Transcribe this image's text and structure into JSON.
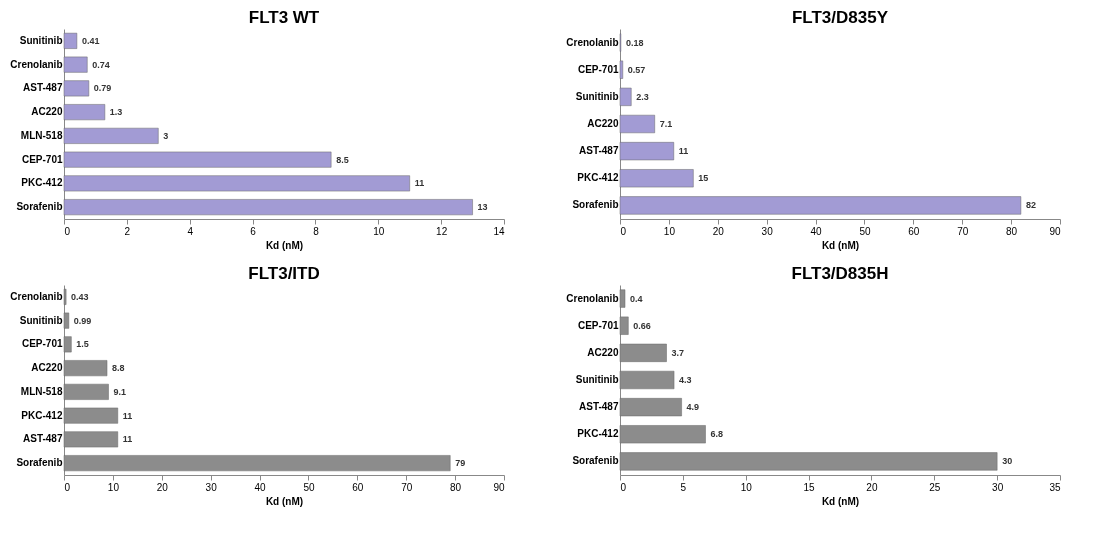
{
  "chart_data": [
    {
      "type": "bar",
      "orientation": "horizontal",
      "title": "FLT3 WT",
      "xlabel": "Kd (nM)",
      "categories": [
        "Sunitinib",
        "Crenolanib",
        "AST-487",
        "AC220",
        "MLN-518",
        "CEP-701",
        "PKC-412",
        "Sorafenib"
      ],
      "values": [
        0.41,
        0.74,
        0.79,
        1.3,
        3,
        8.5,
        11,
        13
      ],
      "color": "#a29bd4",
      "xlim": [
        0,
        14
      ],
      "xticks": [
        0,
        2,
        4,
        6,
        8,
        10,
        12,
        14
      ],
      "data_labels": true,
      "grid": false
    },
    {
      "type": "bar",
      "orientation": "horizontal",
      "title": "FLT3/D835Y",
      "xlabel": "Kd (nM)",
      "categories": [
        "Crenolanib",
        "CEP-701",
        "Sunitinib",
        "AC220",
        "AST-487",
        "PKC-412",
        "Sorafenib"
      ],
      "values": [
        0.18,
        0.57,
        2.3,
        7.1,
        11,
        15,
        82
      ],
      "color": "#a29bd4",
      "xlim": [
        0,
        90
      ],
      "xticks": [
        0,
        10,
        20,
        30,
        40,
        50,
        60,
        70,
        80,
        90
      ],
      "data_labels": true,
      "grid": false
    },
    {
      "type": "bar",
      "orientation": "horizontal",
      "title": "FLT3/ITD",
      "xlabel": "Kd (nM)",
      "categories": [
        "Crenolanib",
        "Sunitinib",
        "CEP-701",
        "AC220",
        "MLN-518",
        "PKC-412",
        "AST-487",
        "Sorafenib"
      ],
      "values": [
        0.43,
        0.99,
        1.5,
        8.8,
        9.1,
        11,
        11,
        79
      ],
      "color": "#8c8c8c",
      "xlim": [
        0,
        90
      ],
      "xticks": [
        0,
        10,
        20,
        30,
        40,
        50,
        60,
        70,
        80,
        90
      ],
      "data_labels": true,
      "grid": false
    },
    {
      "type": "bar",
      "orientation": "horizontal",
      "title": "FLT3/D835H",
      "xlabel": "Kd (nM)",
      "categories": [
        "Crenolanib",
        "CEP-701",
        "AC220",
        "Sunitinib",
        "AST-487",
        "PKC-412",
        "Sorafenib"
      ],
      "values": [
        0.4,
        0.66,
        3.7,
        4.3,
        4.9,
        6.8,
        30
      ],
      "color": "#8c8c8c",
      "xlim": [
        0,
        35
      ],
      "xticks": [
        0,
        5,
        10,
        15,
        20,
        25,
        30,
        35
      ],
      "data_labels": true,
      "grid": false
    }
  ]
}
